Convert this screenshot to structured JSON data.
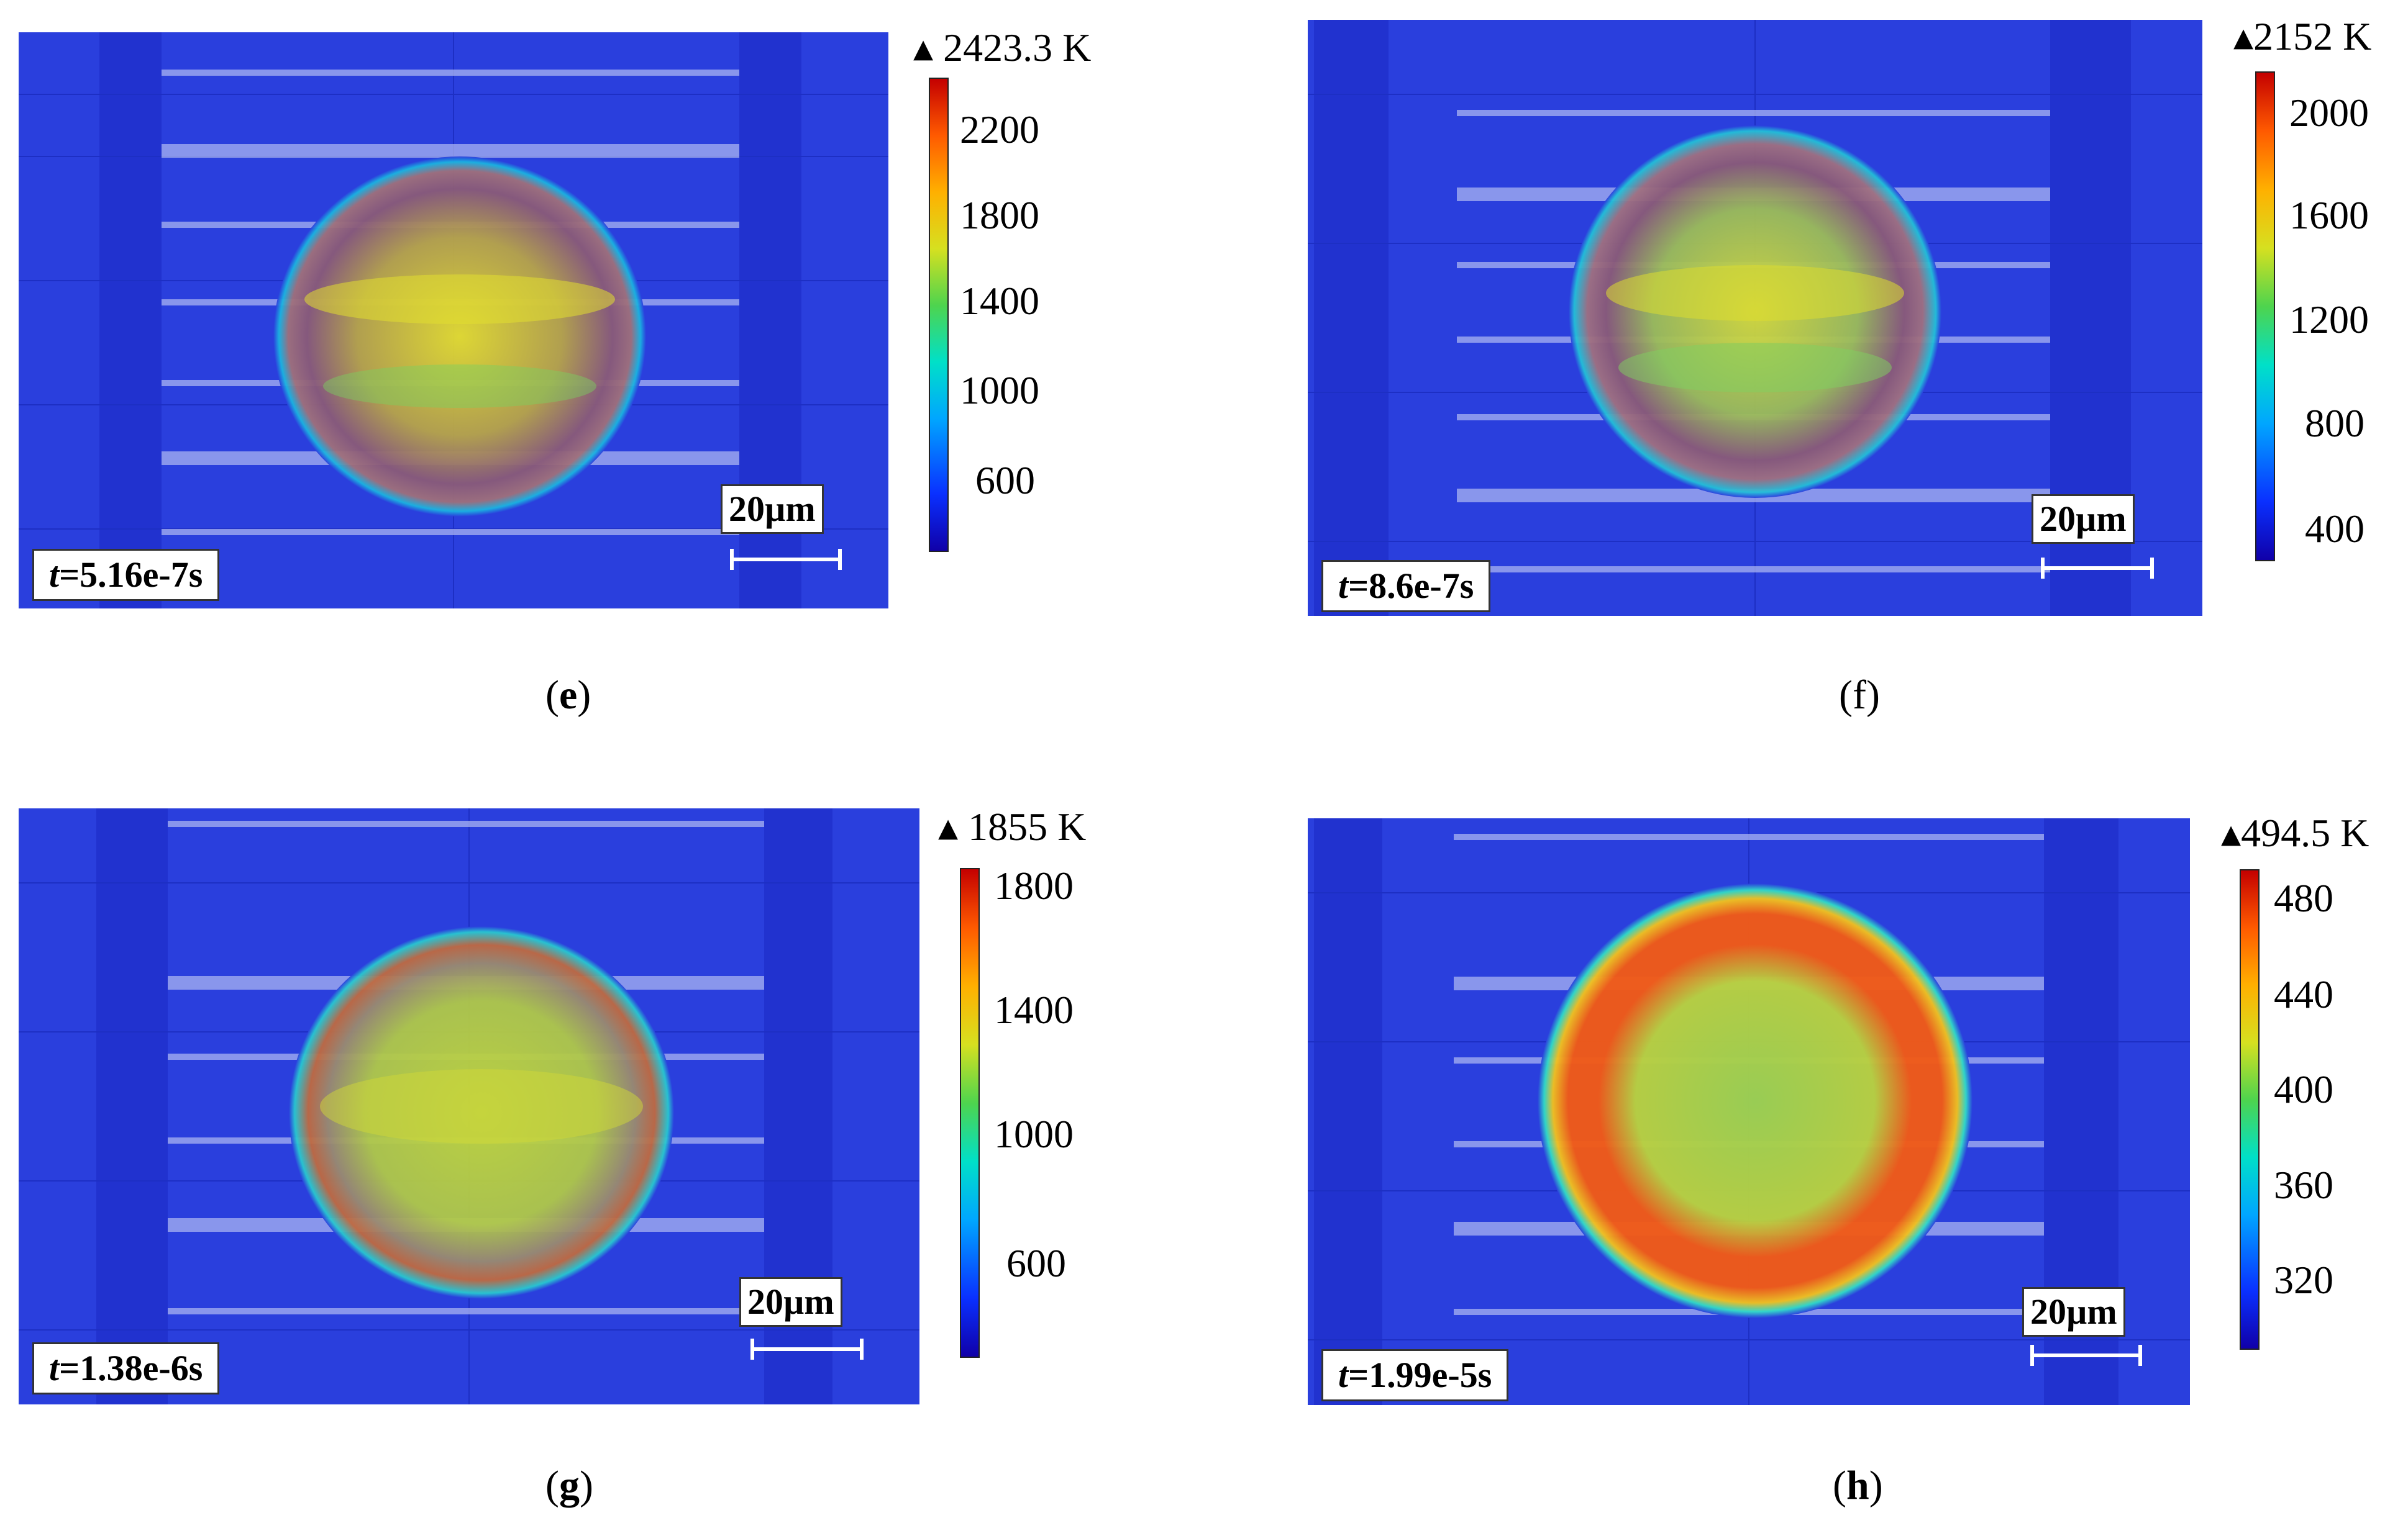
{
  "panels": [
    {
      "id": "e",
      "caption_open": "(",
      "caption_letter": "e",
      "caption_close": ")",
      "caption_bold": true,
      "time_label": "=5.16e-7s",
      "scale_label": "20µm",
      "colorbar_max": "2423.3 K",
      "colorbar_ticks": [
        "2200",
        "1800",
        "1400",
        "1000",
        "600"
      ],
      "colorbar_range": [
        300,
        2423.3
      ],
      "tick_values": [
        2200,
        1800,
        1400,
        1000,
        600
      ]
    },
    {
      "id": "f",
      "caption_open": "(",
      "caption_letter": "f",
      "caption_close": ")",
      "caption_bold": false,
      "time_label": "=8.6e-7s",
      "scale_label": "20µm",
      "colorbar_max": "2152 K",
      "colorbar_ticks": [
        "2000",
        "1600",
        "1200",
        "800",
        "400"
      ],
      "colorbar_range": [
        300,
        2152
      ],
      "tick_values": [
        2000,
        1600,
        1200,
        800,
        400
      ]
    },
    {
      "id": "g",
      "caption_open": "(",
      "caption_letter": "g",
      "caption_close": ")",
      "caption_bold": true,
      "time_label": "=1.38e-6s",
      "scale_label": "20µm",
      "colorbar_max": "1855 K",
      "colorbar_ticks": [
        "1800",
        "1400",
        "1000",
        "600"
      ],
      "colorbar_range": [
        300,
        1855
      ],
      "tick_values": [
        1800,
        1400,
        1000,
        600
      ]
    },
    {
      "id": "h",
      "caption_open": "(",
      "caption_letter": "h",
      "caption_close": ")",
      "caption_bold": true,
      "time_label": "=1.99e-5s",
      "scale_label": "20µm",
      "colorbar_max": "494.5 K",
      "colorbar_ticks": [
        "480",
        "440",
        "400",
        "360",
        "320"
      ],
      "colorbar_range": [
        295,
        494.5
      ],
      "tick_values": [
        480,
        440,
        400,
        360,
        320
      ]
    }
  ],
  "time_symbol": "t",
  "colors": {
    "substrate": "#2a3fdd",
    "stripe": "#a9b4f0",
    "hot": "#d40000",
    "cold": "#1000a8"
  }
}
